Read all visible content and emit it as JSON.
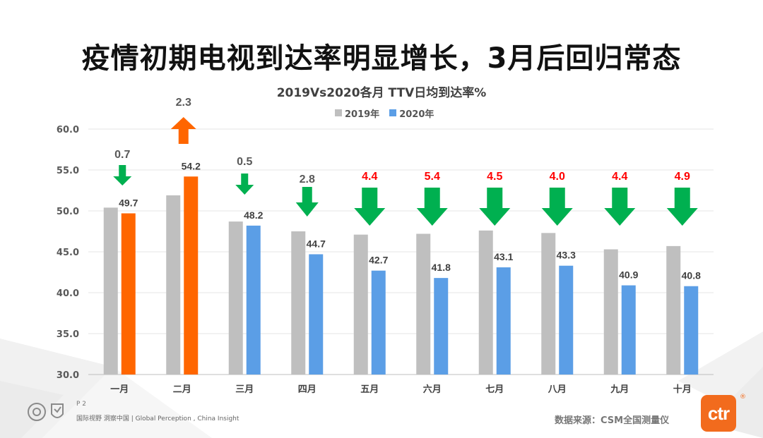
{
  "page": {
    "title": "疫情初期电视到达率明显增长，3月后回归常态",
    "footer": {
      "page_number": "P 2",
      "slogan": "国际视野  洞察中国 |  Global Perception , China Insight",
      "source": "数据来源：CSM全国测量仪",
      "brand": "ctr",
      "brand_mark": "®"
    }
  },
  "colors": {
    "y2019": "#bfbfbf",
    "y2020": "#5b9ee6",
    "growth": "#ff6600",
    "decline_arrow": "#00b050",
    "label_highlight": "#ff0000",
    "label_normal": "#595959"
  },
  "icons": {
    "growth": "arrow-up-icon",
    "decline": "arrow-down-icon"
  },
  "chart_data": {
    "type": "bar",
    "title": "2019Vs2020各月 TTV日均到达率%",
    "categories": [
      "一月",
      "二月",
      "三月",
      "四月",
      "五月",
      "六月",
      "七月",
      "八月",
      "九月",
      "十月"
    ],
    "series": [
      {
        "name": "2019年",
        "values": [
          50.4,
          51.9,
          48.7,
          47.5,
          47.1,
          47.2,
          47.6,
          47.3,
          45.3,
          45.7
        ]
      },
      {
        "name": "2020年",
        "values": [
          49.7,
          54.2,
          48.2,
          44.7,
          42.7,
          41.8,
          43.1,
          43.3,
          40.9,
          40.8
        ]
      }
    ],
    "value_labels": [
      "49.7",
      "54.2",
      "48.2",
      "44.7",
      "42.7",
      "41.8",
      "43.1",
      "43.3",
      "40.9",
      "40.8"
    ],
    "changes": [
      {
        "label": "0.7",
        "direction": "down",
        "highlight": false
      },
      {
        "label": "2.3",
        "direction": "up",
        "highlight": false
      },
      {
        "label": "0.5",
        "direction": "down",
        "highlight": false
      },
      {
        "label": "2.8",
        "direction": "down",
        "highlight": false
      },
      {
        "label": "4.4",
        "direction": "down",
        "highlight": true
      },
      {
        "label": "5.4",
        "direction": "down",
        "highlight": true
      },
      {
        "label": "4.5",
        "direction": "down",
        "highlight": true
      },
      {
        "label": "4.0",
        "direction": "down",
        "highlight": true
      },
      {
        "label": "4.4",
        "direction": "down",
        "highlight": true
      },
      {
        "label": "4.9",
        "direction": "down",
        "highlight": true
      }
    ],
    "highlight_2020_categories": [
      "一月",
      "二月"
    ],
    "ylim": [
      30,
      60
    ],
    "yticks": [
      "30.0",
      "35.0",
      "40.0",
      "45.0",
      "50.0",
      "55.0",
      "60.0"
    ],
    "grid": true,
    "legend": "top-center"
  }
}
